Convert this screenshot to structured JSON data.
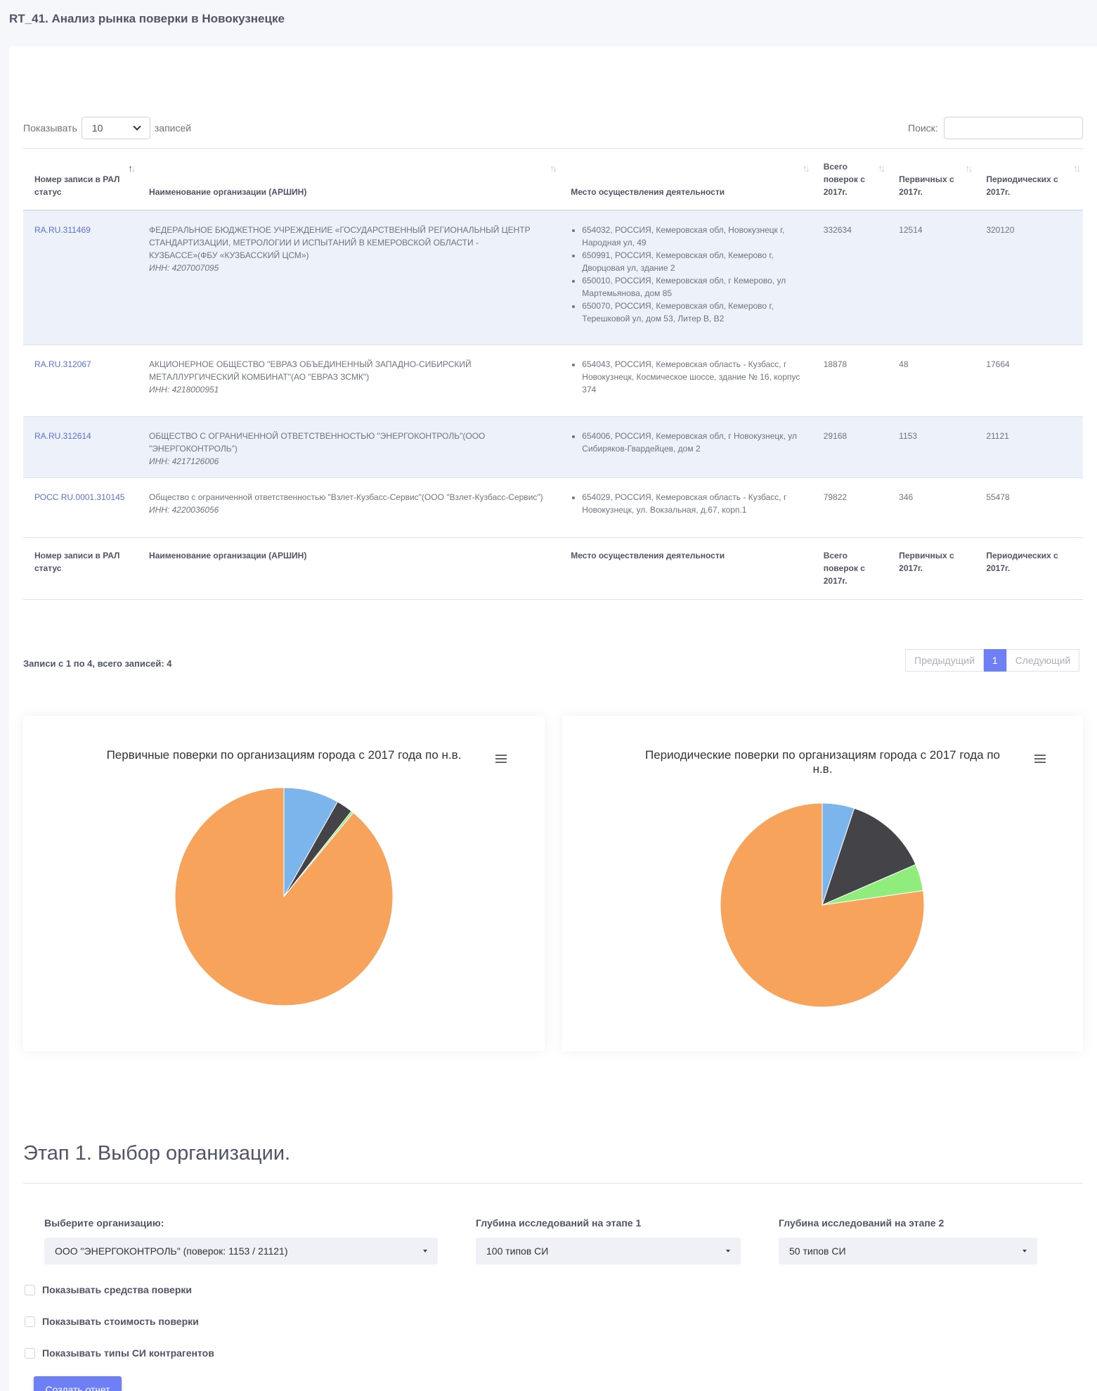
{
  "page": {
    "title": "RT_41. Анализ рынка поверки в Новокузнецке"
  },
  "table_controls": {
    "show_label": "Показывать",
    "page_length": "10",
    "entries_label": "записей",
    "search_label": "Поиск:",
    "search_value": ""
  },
  "table": {
    "headers": [
      "Номер записи в РАЛ статус",
      "Наименование организации (АРШИН)",
      "Место осуществления деятельности",
      "Всего поверок с 2017г.",
      "Первичных с 2017г.",
      "Периодических с 2017г."
    ],
    "rows": [
      {
        "id": "RA.RU.311469",
        "name": "ФЕДЕРАЛЬНОЕ БЮДЖЕТНОЕ УЧРЕЖДЕНИЕ «ГОСУДАРСТВЕННЫЙ РЕГИОНАЛЬНЫЙ ЦЕНТР СТАНДАРТИЗАЦИИ, МЕТРОЛОГИИ И ИСПЫТАНИЙ В КЕМЕРОВСКОЙ ОБЛАСТИ - КУЗБАССЕ»(ФБУ «КУЗБАССКИЙ ЦСМ»)",
        "inn": "ИНН: 4207007095",
        "addresses": [
          "654032, РОССИЯ, Кемеровская обл, Новокузнецк г, Народная ул, 49",
          "650991, РОССИЯ, Кемеровская обл, Кемерово г, Дворцовая ул, здание 2",
          "650010, РОССИЯ, Кемеровская обл, г Кемерово, ул Мартемьянова, дом 85",
          "650070, РОССИЯ, Кемеровская обл, Кемерово г, Терешковой ул, дом 53, Литер В, В2"
        ],
        "total": "332634",
        "primary": "12514",
        "periodic": "320120"
      },
      {
        "id": "RA.RU.312067",
        "name": "АКЦИОНЕРНОЕ ОБЩЕСТВО \"ЕВРАЗ ОБЪЕДИНЕННЫЙ ЗАПАДНО-СИБИРСКИЙ МЕТАЛЛУРГИЧЕСКИЙ КОМБИНАТ\"(АО \"ЕВРАЗ ЗСМК\")",
        "inn": "ИНН: 4218000951",
        "addresses": [
          "654043, РОССИЯ, Кемеровская область - Кузбасс, г Новокузнецк, Космическое шоссе, здание № 16, корпус 374"
        ],
        "total": "18878",
        "primary": "48",
        "periodic": "17664"
      },
      {
        "id": "RA.RU.312614",
        "name": "ОБЩЕСТВО С ОГРАНИЧЕННОЙ ОТВЕТСТВЕННОСТЬЮ \"ЭНЕРГОКОНТРОЛЬ\"(ООО \"ЭНЕРГОКОНТРОЛЬ\")",
        "inn": "ИНН: 4217126006",
        "addresses": [
          "654006, РОССИЯ, Кемеровская обл, г Новокузнецк, ул Сибиряков-Гвардейцев, дом 2"
        ],
        "total": "29168",
        "primary": "1153",
        "periodic": "21121"
      },
      {
        "id": "РОСС RU.0001.310145",
        "name": "Общество с ограниченной ответственностью \"Взлет-Кузбасс-Сервис\"(ООО \"Взлет-Кузбасс-Сервис\")",
        "inn": "ИНН: 4220036056",
        "addresses": [
          "654029, РОССИЯ, Кемеровская область - Кузбасс, г Новокузнецк, ул. Вокзальная, д.67, корп.1"
        ],
        "total": "79822",
        "primary": "346",
        "periodic": "55478"
      }
    ]
  },
  "table_info": "Записи с 1 по 4, всего записей: 4",
  "pagination": {
    "prev": "Предыдущий",
    "current": "1",
    "next": "Следующий"
  },
  "charts": {
    "primary_title": "Первичные поверки по организациям города с 2017 года по н.в.",
    "periodic_title_line1": "Периодические поверки по организациям города с 2017 года по",
    "periodic_title_line2": "н.в.",
    "colors": [
      "#7cb5ec",
      "#434348",
      "#90ed7d",
      "#f7a35c"
    ]
  },
  "chart_data": [
    {
      "type": "pie",
      "title": "Первичные поверки по организациям города с 2017 года по н.в.",
      "values": [
        1153,
        346,
        48,
        12514
      ],
      "colors": [
        "#7cb5ec",
        "#434348",
        "#90ed7d",
        "#f7a35c"
      ]
    },
    {
      "type": "pie",
      "title": "Периодические поверки по организациям города с 2017 года по н.в.",
      "values": [
        21121,
        55478,
        17664,
        320120
      ],
      "colors": [
        "#7cb5ec",
        "#434348",
        "#90ed7d",
        "#f7a35c"
      ]
    }
  ],
  "stage": {
    "title": "Этап 1. Выбор организации.",
    "org_label": "Выберите организацию:",
    "org_value": "ООО \"ЭНЕРГОКОНТРОЛЬ\" (поверок: 1153 / 21121)",
    "depth1_label": "Глубина исследований на этапе 1",
    "depth1_value": "100 типов СИ",
    "depth2_label": "Глубина исследований на этапе 2",
    "depth2_value": "50 типов СИ",
    "checkboxes": [
      "Показывать средства поверки",
      "Показывать стоимость поверки",
      "Показывать типы СИ контрагентов"
    ],
    "submit": "Создать отчет"
  }
}
